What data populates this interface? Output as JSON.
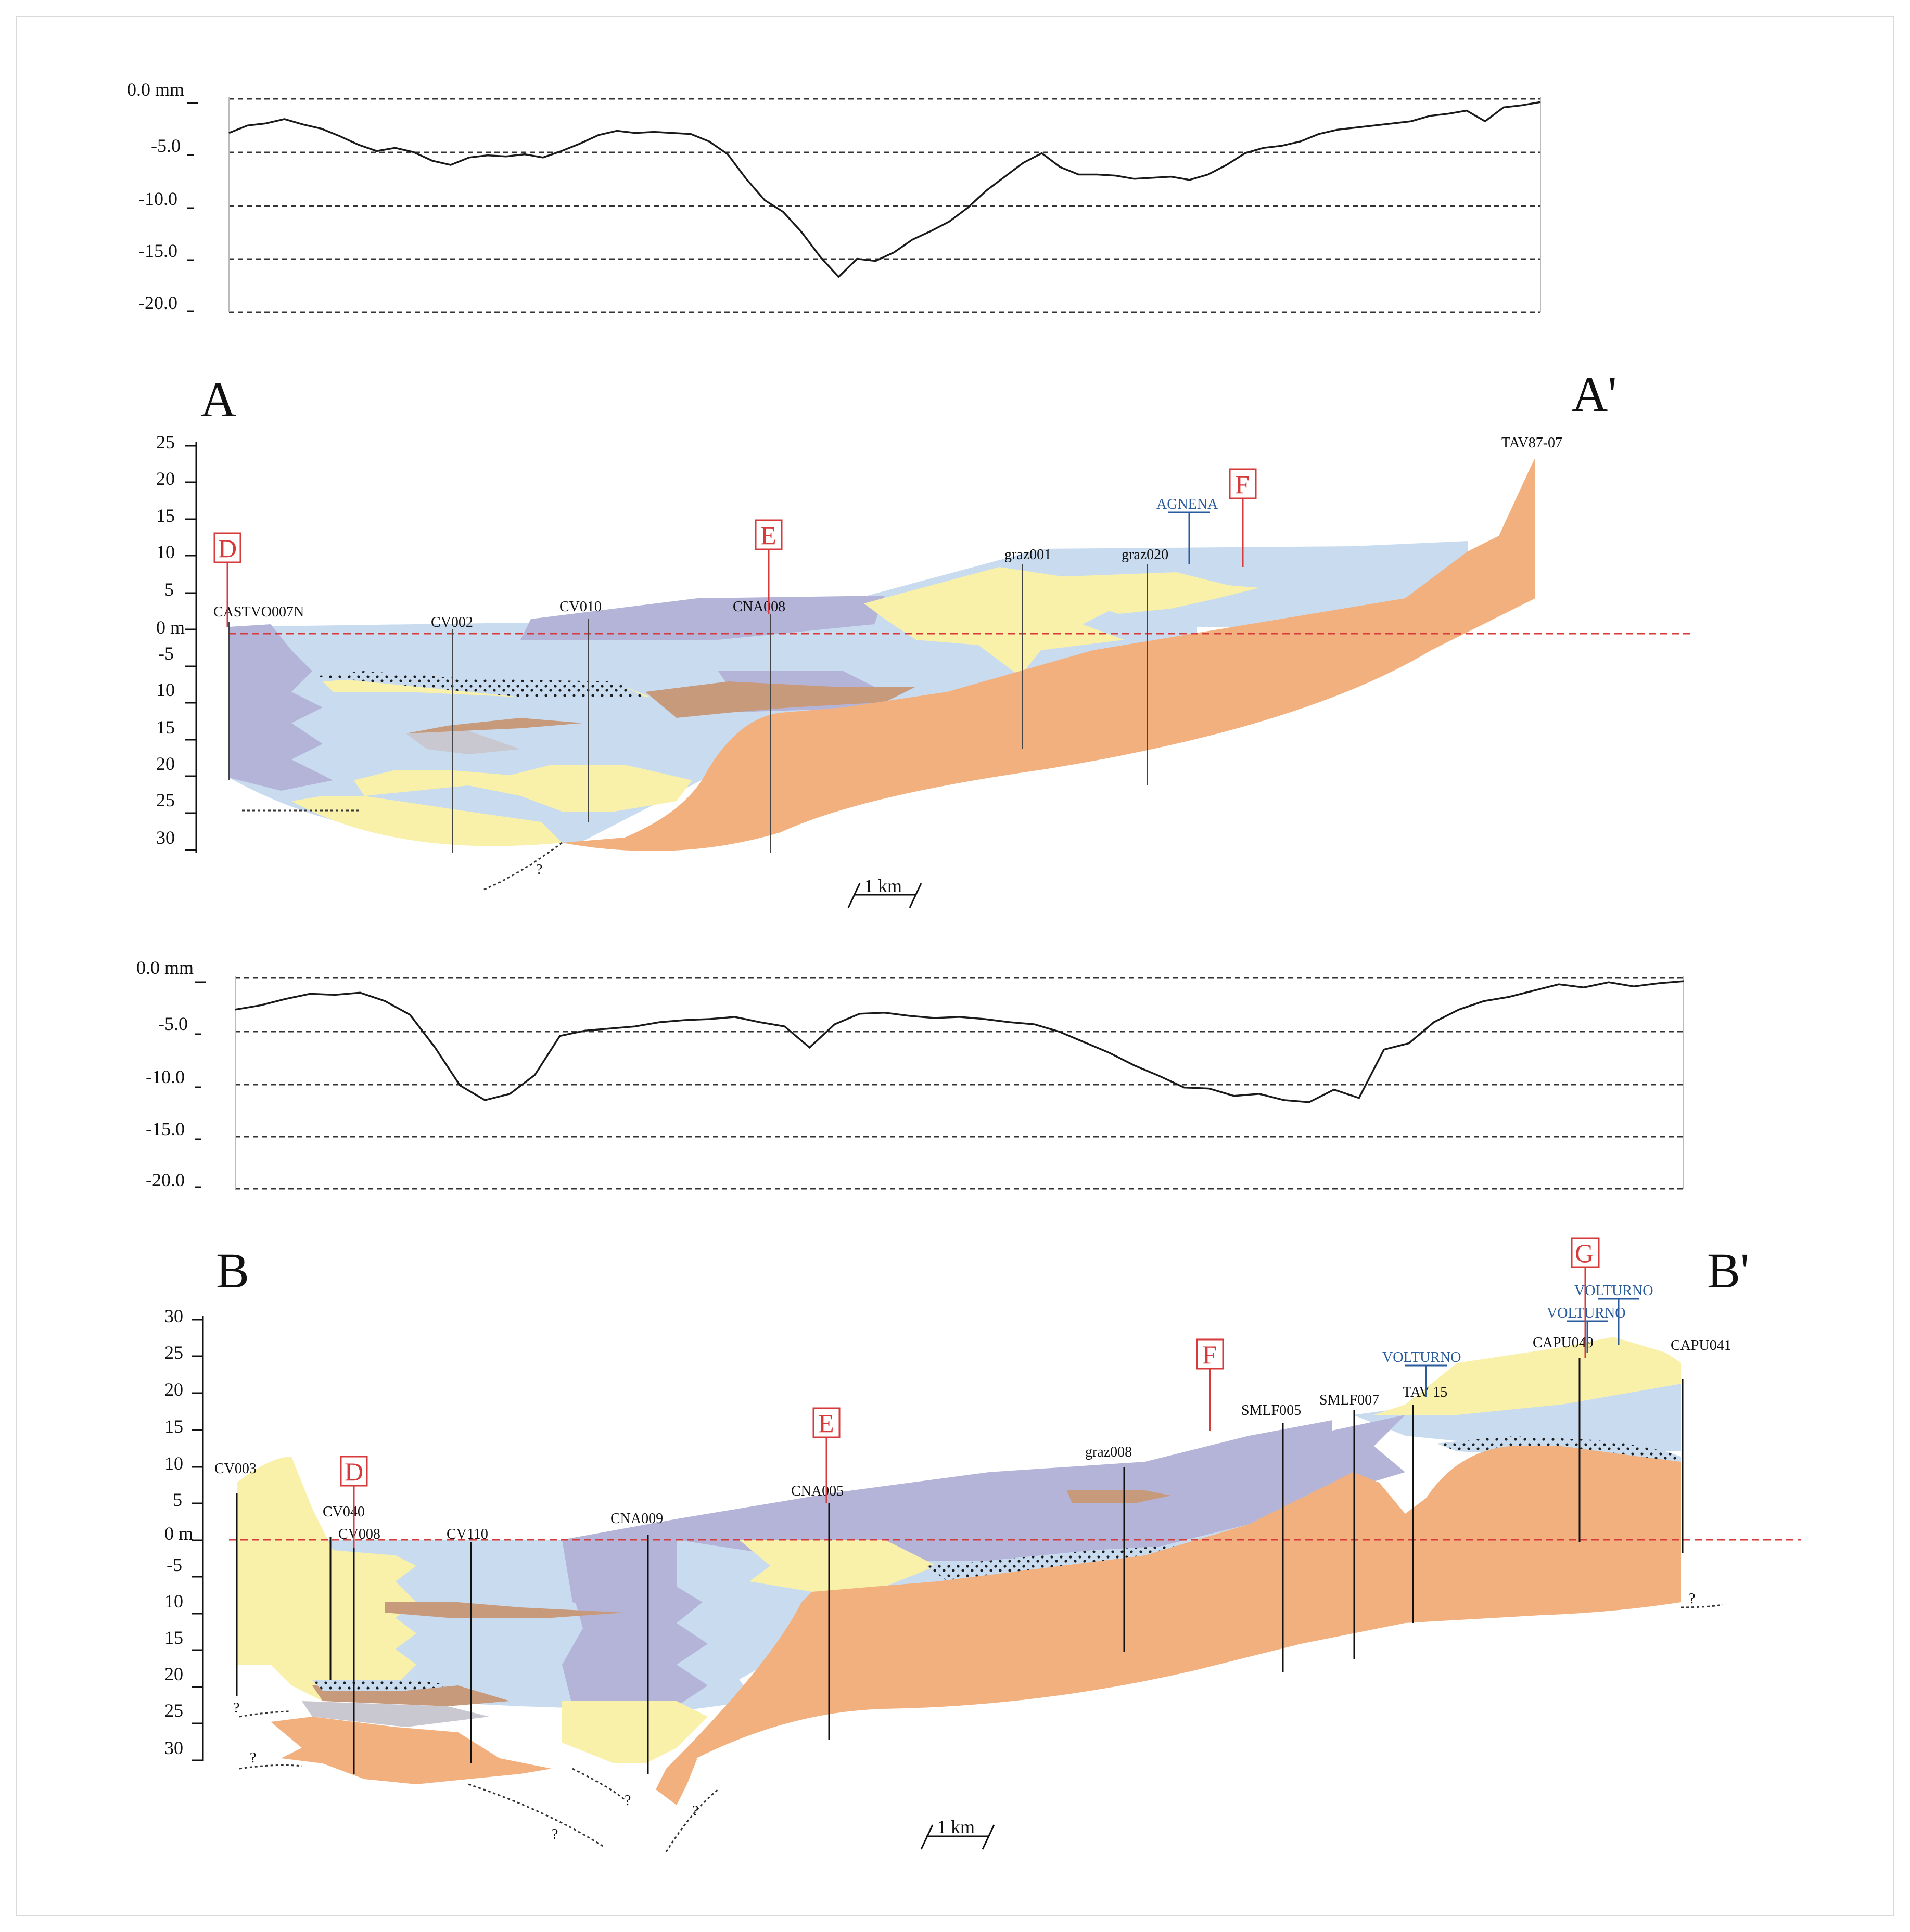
{
  "colors": {
    "orange": "#f2b07e",
    "blue": "#c9dcef",
    "purple": "#b4b4d9",
    "yellow": "#f9f0aa",
    "brown": "#c79a7c",
    "grey": "#c9c7cf",
    "marker": "#d63a3a",
    "river": "#2a5b9c"
  },
  "profile1": {
    "unit_label": "0.0 mm",
    "tick_labels": [
      "-5.0",
      "-10.0",
      "-15.0",
      "-20.0"
    ],
    "axis_values": [
      0,
      -5,
      -10,
      -15,
      -20
    ],
    "values": [
      -3.2,
      -2.5,
      -2.3,
      -1.9,
      -2.4,
      -2.8,
      -3.5,
      -4.3,
      -4.9,
      -4.6,
      -5.0,
      -5.8,
      -6.2,
      -5.5,
      -5.3,
      -5.4,
      -5.2,
      -5.5,
      -4.9,
      -4.2,
      -3.4,
      -3.0,
      -3.2,
      -3.1,
      -3.2,
      -3.3,
      -4.0,
      -5.2,
      -7.5,
      -9.5,
      -10.6,
      -12.5,
      -14.8,
      -16.7,
      -15.0,
      -15.2,
      -14.4,
      -13.2,
      -12.4,
      -11.5,
      -10.2,
      -8.6,
      -7.3,
      -6.0,
      -5.1,
      -6.4,
      -7.1,
      -7.1,
      -7.2,
      -7.5,
      -7.4,
      -7.3,
      -7.6,
      -7.1,
      -6.2,
      -5.1,
      -4.6,
      -4.4,
      -4.0,
      -3.3,
      -2.9,
      -2.7,
      -2.5,
      -2.3,
      -2.1,
      -1.6,
      -1.4,
      -1.1,
      -2.1,
      -0.8,
      -0.6,
      -0.3
    ]
  },
  "section_a": {
    "label_left": "A",
    "label_right": "A'",
    "depth_unit_label": "0 m",
    "depth_tick_labels": [
      "25",
      "20",
      "15",
      "10",
      "5",
      "-5",
      "10",
      "15",
      "20",
      "25",
      "30"
    ],
    "depth_tick_values": [
      25,
      20,
      15,
      10,
      5,
      -5,
      -10,
      -15,
      -20,
      -25,
      -30
    ],
    "wells": [
      "CASTVO007N",
      "CV002",
      "CV010",
      "CNA008",
      "graz001",
      "graz020",
      "TAV87-07"
    ],
    "markers": [
      "D",
      "E",
      "F"
    ],
    "river": "AGNENA",
    "scale_label": "1 km",
    "unknown_label": "?"
  },
  "profile2": {
    "unit_label": "0.0 mm",
    "tick_labels": [
      "-5.0",
      "-10.0",
      "-15.0",
      "-20.0"
    ],
    "axis_values": [
      0,
      -5,
      -10,
      -15,
      -20
    ],
    "values": [
      -3.0,
      -2.6,
      -2.0,
      -1.5,
      -1.6,
      -1.4,
      -2.2,
      -3.5,
      -6.6,
      -10.2,
      -11.6,
      -11.0,
      -9.2,
      -5.5,
      -5.0,
      -4.8,
      -4.6,
      -4.2,
      -4.0,
      -3.9,
      -3.7,
      -4.2,
      -4.6,
      -6.6,
      -4.4,
      -3.4,
      -3.3,
      -3.6,
      -3.8,
      -3.7,
      -3.9,
      -4.2,
      -4.4,
      -5.1,
      -6.1,
      -7.1,
      -8.3,
      -9.3,
      -10.4,
      -10.5,
      -11.2,
      -11.0,
      -11.6,
      -11.8,
      -10.6,
      -11.4,
      -6.8,
      -6.2,
      -4.2,
      -3.0,
      -2.2,
      -1.8,
      -1.2,
      -0.6,
      -0.9,
      -0.4,
      -0.8,
      -0.5,
      -0.3
    ]
  },
  "section_b": {
    "label_left": "B",
    "label_right": "B'",
    "depth_unit_label": "0 m",
    "depth_tick_labels": [
      "30",
      "25",
      "20",
      "15",
      "10",
      "5",
      "-5",
      "10",
      "15",
      "20",
      "25",
      "30"
    ],
    "depth_tick_values": [
      30,
      25,
      20,
      15,
      10,
      5,
      -5,
      -10,
      -15,
      -20,
      -25,
      -30
    ],
    "wells": [
      "CV003",
      "CV040",
      "CV008",
      "CV110",
      "CNA009",
      "CNA005",
      "graz008",
      "SMLF005",
      "SMLF007",
      "TAV 15",
      "CAPU049",
      "CAPU041"
    ],
    "markers": [
      "D",
      "E",
      "F",
      "G"
    ],
    "rivers": [
      "VOLTURNO",
      "VOLTURNO",
      "VOLTURNO"
    ],
    "scale_label": "1 km",
    "unknown_label": "?"
  }
}
